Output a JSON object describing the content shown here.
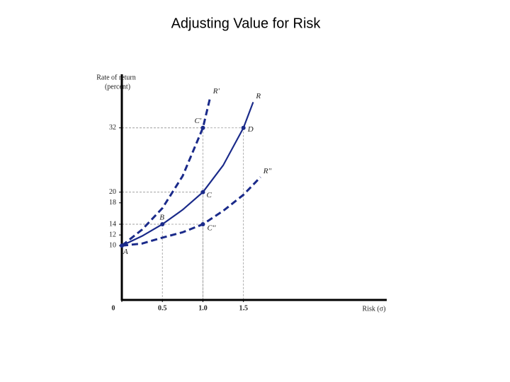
{
  "chart_data": {
    "type": "line",
    "title": "Adjusting Value for Risk",
    "ylabel": [
      "Rate of return",
      "(percent)"
    ],
    "xlabel": "Risk (σ)",
    "xlim": [
      0,
      3.25
    ],
    "ylim": [
      0,
      42
    ],
    "xticks": [
      0,
      0.5,
      {
        "value": 1,
        "label": "1.0"
      },
      1.5
    ],
    "yticks": [
      10,
      12,
      14,
      18,
      20,
      32
    ],
    "series": [
      {
        "name": "R'",
        "color": "#1a2a8a",
        "dashed": true,
        "x": [
          0,
          0.25,
          0.5,
          0.75,
          1,
          1.09
        ],
        "values": [
          10,
          13,
          17,
          23,
          32,
          37.7
        ]
      },
      {
        "name": "R",
        "color": "#1a2a8a",
        "dashed": false,
        "x": [
          0,
          0.25,
          0.5,
          0.75,
          1,
          1.25,
          1.5,
          1.62
        ],
        "values": [
          10,
          11.8,
          14,
          16.7,
          20,
          25,
          32,
          36.8
        ]
      },
      {
        "name": "R''",
        "color": "#1a2a8a",
        "dashed": true,
        "x": [
          0,
          0.25,
          0.5,
          0.75,
          1,
          1.25,
          1.5,
          1.71
        ],
        "values": [
          10,
          10.4,
          11.5,
          12.5,
          14,
          16.5,
          19.5,
          22.8
        ]
      }
    ],
    "points": [
      {
        "label": "A",
        "x": 0,
        "y": 10
      },
      {
        "label": "B",
        "x": 0.5,
        "y": 14
      },
      {
        "label": "C",
        "x": 1,
        "y": 20
      },
      {
        "label": "D",
        "x": 1.5,
        "y": 32
      },
      {
        "label": "C'",
        "x": 1,
        "y": 32
      },
      {
        "label": "C''",
        "x": 1,
        "y": 14
      }
    ]
  }
}
